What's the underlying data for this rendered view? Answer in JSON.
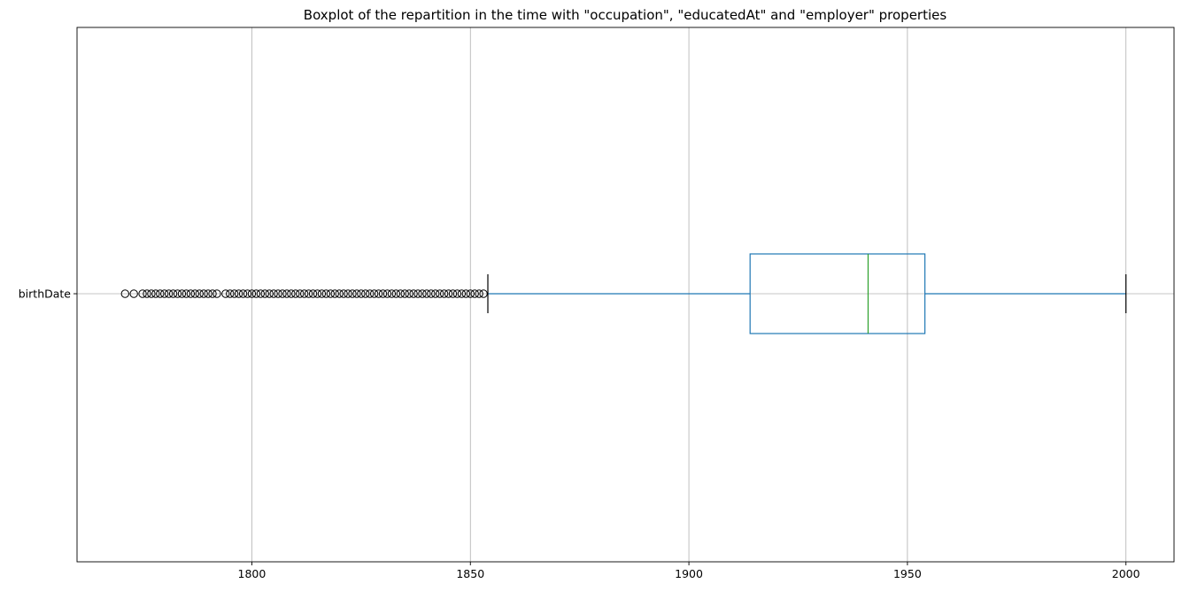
{
  "chart_data": {
    "type": "boxplot",
    "orientation": "horizontal",
    "title": "Boxplot of the repartition in the time with \"occupation\", \"educatedAt\" and \"employer\" properties",
    "xlabel": "",
    "ylabel": "",
    "xlim": [
      1760,
      2011
    ],
    "xticks": [
      1800,
      1850,
      1900,
      1950,
      2000
    ],
    "grid": true,
    "categories": [
      "birthDate"
    ],
    "series": [
      {
        "category": "birthDate",
        "whisker_low": 1854,
        "q1": 1914,
        "median": 1941,
        "q3": 1954,
        "whisker_high": 2000,
        "outliers": [
          1771,
          1773,
          1775,
          1776,
          1777,
          1778,
          1779,
          1780,
          1781,
          1782,
          1783,
          1784,
          1785,
          1786,
          1787,
          1788,
          1789,
          1790,
          1791,
          1792,
          1794,
          1795,
          1796,
          1797,
          1798,
          1799,
          1800,
          1801,
          1802,
          1803,
          1804,
          1805,
          1806,
          1807,
          1808,
          1809,
          1810,
          1811,
          1812,
          1813,
          1814,
          1815,
          1816,
          1817,
          1818,
          1819,
          1820,
          1821,
          1822,
          1823,
          1824,
          1825,
          1826,
          1827,
          1828,
          1829,
          1830,
          1831,
          1832,
          1833,
          1834,
          1835,
          1836,
          1837,
          1838,
          1839,
          1840,
          1841,
          1842,
          1843,
          1844,
          1845,
          1846,
          1847,
          1848,
          1849,
          1850,
          1851,
          1852,
          1853
        ]
      }
    ],
    "colors": {
      "box": "#1f77b4",
      "median": "#2ca02c",
      "cap": "#000000",
      "flier": "#000000",
      "grid": "#b0b0b0"
    }
  }
}
